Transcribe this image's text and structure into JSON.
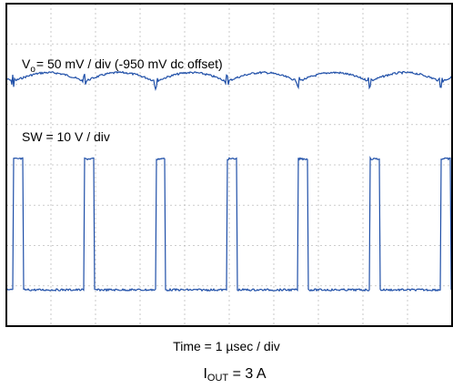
{
  "chart_data": {
    "type": "line",
    "annotations": {
      "vo": {
        "symbol": "V",
        "subscript": "o",
        "text": "= 50 mV / div (-950 mV dc offset)"
      },
      "sw": "SW = 10 V / div"
    },
    "xlabel": "Time = 1 µsec / div",
    "condition": {
      "prefix": "I",
      "subscript": "OUT",
      "suffix": " = 3 A"
    },
    "grid": true,
    "divisions": {
      "x": 10,
      "y": 8
    },
    "xlim": [
      0,
      10
    ],
    "ylim": [
      0,
      8
    ],
    "series": [
      {
        "role": "Vo ripple trace",
        "baseline_div": 1.82,
        "ripple_div": 0.22,
        "spike_times_div": [
          0.15,
          1.75,
          3.35,
          4.95,
          6.55,
          8.15,
          9.75
        ],
        "spike_height_div": 0.18
      },
      {
        "role": "SW node trace",
        "high_div": 3.85,
        "low_div": 7.1,
        "pulse_starts_div": [
          0.15,
          1.75,
          3.35,
          4.95,
          6.55,
          8.15,
          9.75
        ],
        "pulse_width_div": 0.22
      }
    ],
    "colors": {
      "trace": "#1f4fa8",
      "grid": "#bdbdbd",
      "frame": "#000000"
    }
  }
}
